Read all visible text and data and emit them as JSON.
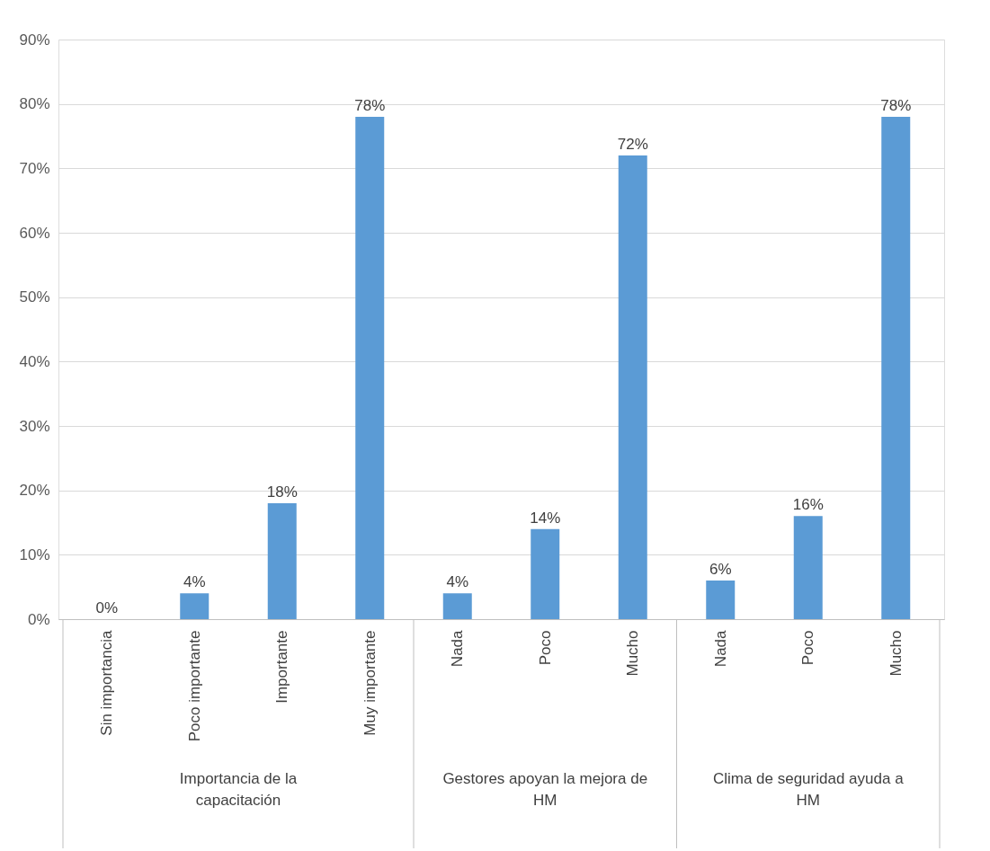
{
  "chart_data": {
    "type": "bar",
    "categories": [
      "Sin importancia",
      "Poco importante",
      "Importante",
      "Muy importante",
      "Nada",
      "Poco",
      "Mucho",
      "Nada",
      "Poco",
      "Mucho"
    ],
    "values": [
      0,
      4,
      18,
      78,
      4,
      14,
      72,
      6,
      16,
      78
    ],
    "value_labels": [
      "0%",
      "4%",
      "18%",
      "78%",
      "4%",
      "14%",
      "72%",
      "6%",
      "16%",
      "78%"
    ],
    "color": "#5b9bd5",
    "ylim": [
      0,
      90
    ],
    "yticks": [
      {
        "value": 0,
        "label": "0%"
      },
      {
        "value": 10,
        "label": "10%"
      },
      {
        "value": 20,
        "label": "20%"
      },
      {
        "value": 30,
        "label": "30%"
      },
      {
        "value": 40,
        "label": "40%"
      },
      {
        "value": 50,
        "label": "50%"
      },
      {
        "value": 60,
        "label": "60%"
      },
      {
        "value": 70,
        "label": "70%"
      },
      {
        "value": 80,
        "label": "80%"
      },
      {
        "value": 90,
        "label": "90%"
      }
    ],
    "grid": "y",
    "annotations": [
      "Importancia de la capacitación",
      "Gestores apoyan la mejora de HM",
      "Clima de seguridad ayuda a HM"
    ]
  }
}
